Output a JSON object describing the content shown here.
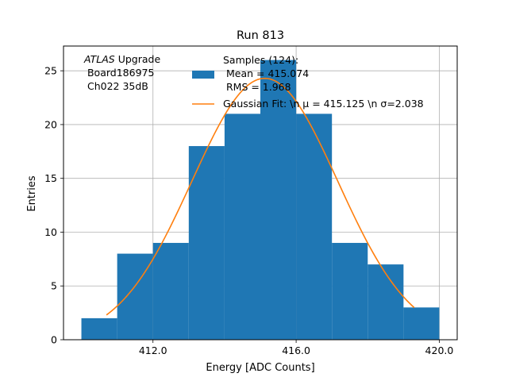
{
  "chart_data": {
    "type": "bar",
    "title": "Run 813",
    "xlabel": "Energy [ADC Counts]",
    "ylabel": "Entries",
    "xlim": [
      409.5,
      420.5
    ],
    "ylim": [
      0,
      27.3
    ],
    "x_ticks": [
      412,
      416,
      420
    ],
    "x_tick_labels": [
      "412.0",
      "416.0",
      "420.0"
    ],
    "y_ticks": [
      0,
      5,
      10,
      15,
      20,
      25
    ],
    "y_tick_labels": [
      "0",
      "5",
      "10",
      "15",
      "20",
      "25"
    ],
    "grid": true,
    "bin_edges": [
      410,
      411,
      412,
      413,
      414,
      415,
      416,
      417,
      418,
      419,
      420
    ],
    "values": [
      2,
      8,
      9,
      18,
      21,
      26,
      21,
      9,
      7,
      3
    ],
    "series": [
      {
        "name": "Samples (124):\n Mean = 415.074\n RMS = 1.968",
        "kind": "histogram",
        "color": "#1f77b4"
      },
      {
        "name": "Gaussian Fit: \\n μ = 415.125 \\n σ=2.038",
        "kind": "line",
        "color": "#ff7f0e",
        "mu": 415.125,
        "sigma": 2.038,
        "amplitude": 24.3,
        "x_range": [
          410.7,
          419.3
        ]
      }
    ],
    "legend_position": "upper right",
    "legend_lines": {
      "samples": [
        "Samples (124):",
        " Mean = 415.074",
        " RMS = 1.968"
      ],
      "fit": "Gaussian Fit: \\n μ = 415.125 \\n σ=2.038"
    },
    "annotation": {
      "experiment": "ATLAS",
      "suffix": " Upgrade",
      "line2": " Board186975",
      "line3": " Ch022 35dB"
    }
  }
}
